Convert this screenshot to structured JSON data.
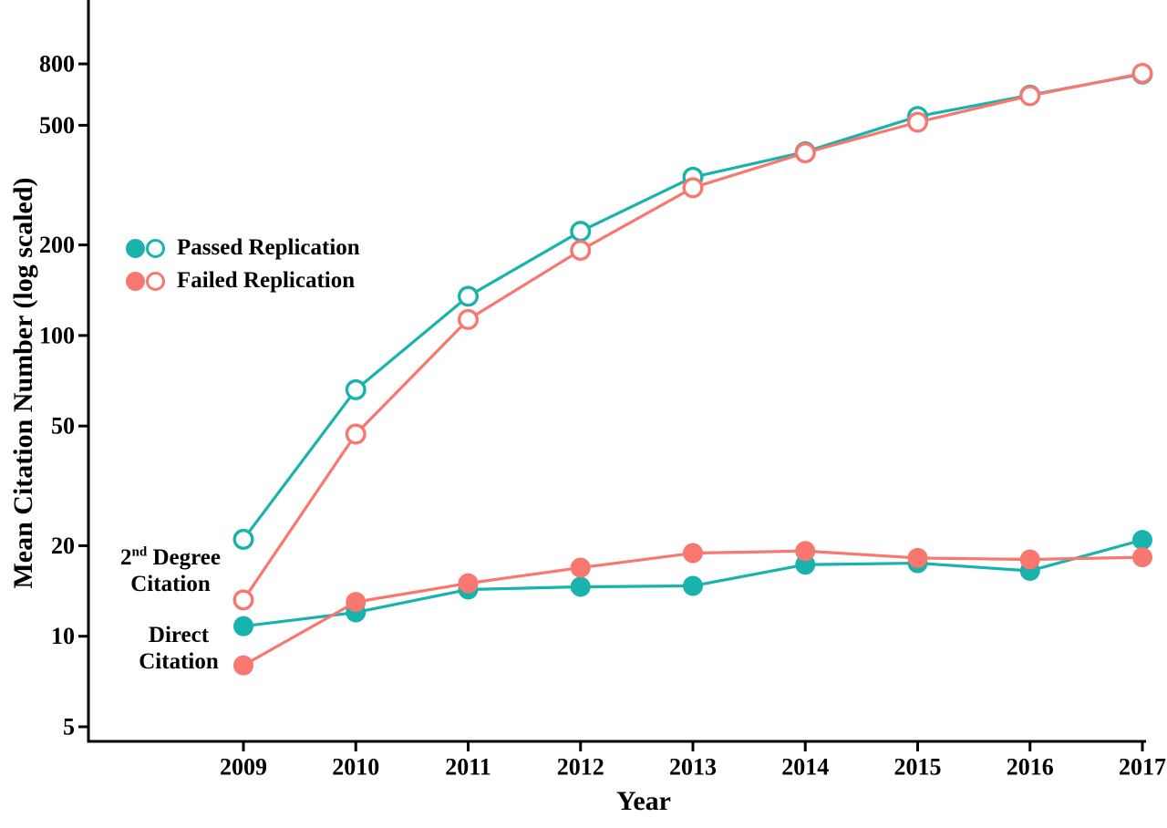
{
  "colors": {
    "passed_teal": "#17B3AC",
    "failed_red": "#F8776F",
    "axis_black": "#000000",
    "background": "#FFFFFF"
  },
  "chart_data": {
    "type": "line",
    "title": "",
    "xlabel": "Year",
    "ylabel": "Mean Citation Number (log scaled)",
    "x": [
      2009,
      2010,
      2011,
      2012,
      2013,
      2014,
      2015,
      2016,
      2017
    ],
    "y_scale": "log",
    "y_ticks": [
      5,
      10,
      20,
      50,
      100,
      200,
      500,
      800
    ],
    "xlim": [
      2007.6,
      2017.2
    ],
    "ylim": [
      4.5,
      1300
    ],
    "grid": false,
    "legend_position": "upper-left-inside",
    "series": [
      {
        "name": "Passed Replication - 2nd Degree Citation",
        "group": "passed",
        "citation_type": "2nd-degree",
        "marker": "open",
        "color": "#17B3AC",
        "values": [
          21,
          66,
          135,
          222,
          336,
          408,
          535,
          630,
          740
        ]
      },
      {
        "name": "Passed Replication - Direct Citation",
        "group": "passed",
        "citation_type": "direct",
        "marker": "filled",
        "color": "#17B3AC",
        "values": [
          10.8,
          12,
          14.3,
          14.6,
          14.7,
          17.3,
          17.5,
          16.5,
          20.9
        ]
      },
      {
        "name": "Failed Replication - 2nd Degree Citation",
        "group": "failed",
        "citation_type": "2nd-degree",
        "marker": "open",
        "color": "#F8776F",
        "values": [
          13.2,
          47,
          113,
          192,
          310,
          405,
          512,
          627,
          744
        ]
      },
      {
        "name": "Failed Replication - Direct Citation",
        "group": "failed",
        "citation_type": "direct",
        "marker": "filled",
        "color": "#F8776F",
        "values": [
          8,
          13,
          15,
          16.9,
          18.9,
          19.2,
          18.2,
          18,
          18.3
        ]
      }
    ],
    "legend": {
      "items": [
        {
          "label": "Passed Replication",
          "color": "#17B3AC"
        },
        {
          "label": "Failed Replication",
          "color": "#F8776F"
        }
      ]
    },
    "annotations": [
      {
        "text": "2nd Degree Citation",
        "line1_base": "2",
        "line1_sup": "nd",
        "line1_rest": " Degree",
        "line2": "Citation"
      },
      {
        "text": "Direct Citation",
        "line1": "Direct",
        "line2": "Citation"
      }
    ]
  }
}
